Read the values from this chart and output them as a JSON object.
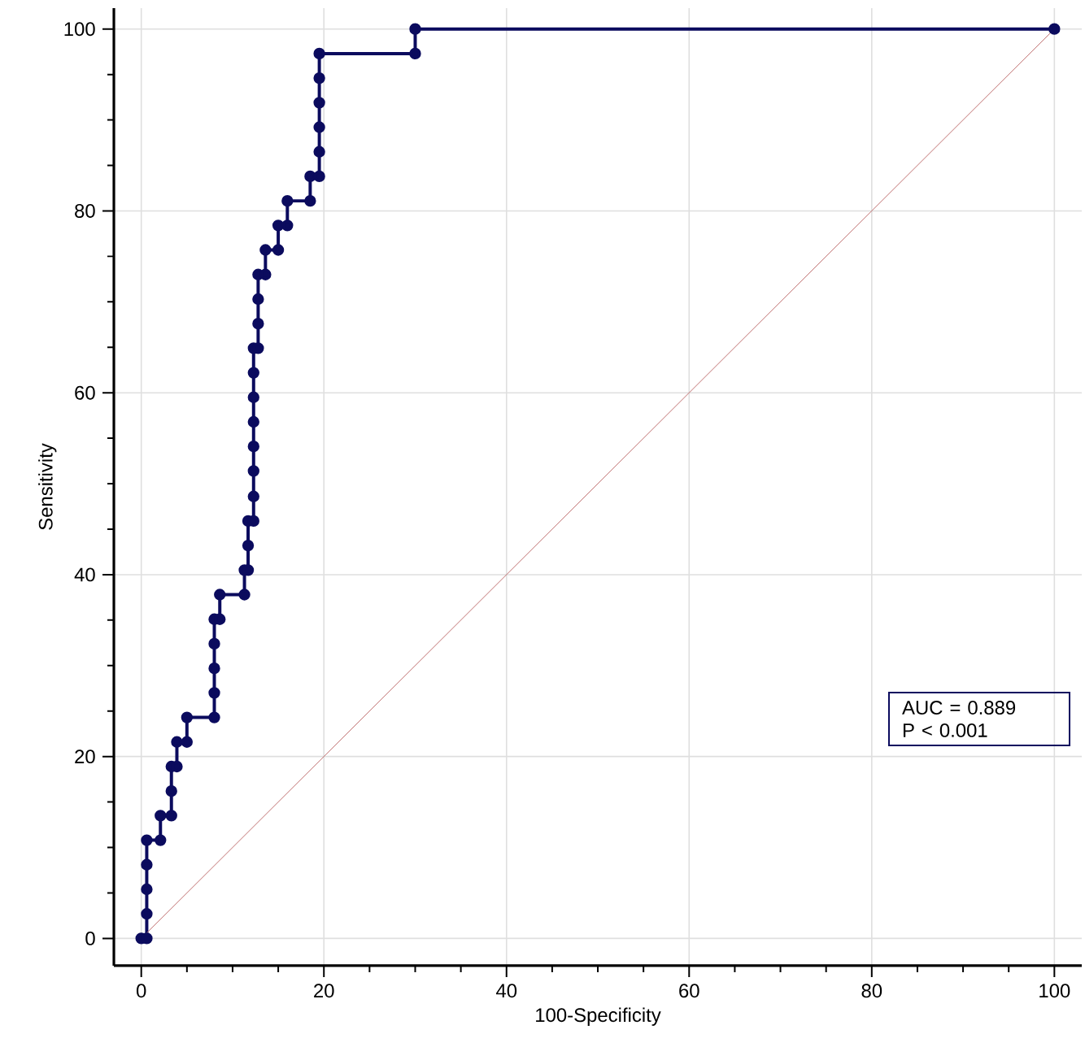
{
  "chart_data": {
    "type": "line",
    "xlabel": "100-Specificity",
    "ylabel": "Sensitivity",
    "xlim": [
      -3,
      103
    ],
    "ylim": [
      -3,
      102.3
    ],
    "xticks": [
      0,
      20,
      40,
      60,
      80,
      100
    ],
    "yticks": [
      0,
      20,
      40,
      60,
      80,
      100
    ],
    "grid": true,
    "series": [
      {
        "color": "#0b0b5e",
        "marker": "circle",
        "x": [
          0,
          0.6,
          0.6,
          0.6,
          0.6,
          0.6,
          2.1,
          2.1,
          3.3,
          3.3,
          3.3,
          3.9,
          3.9,
          5.0,
          5.0,
          8.0,
          8.0,
          8.0,
          8.0,
          8.0,
          8.6,
          8.6,
          11.3,
          11.3,
          11.7,
          11.7,
          11.7,
          12.3,
          12.3,
          12.3,
          12.3,
          12.3,
          12.3,
          12.3,
          12.3,
          12.8,
          12.8,
          12.8,
          12.8,
          13.6,
          13.6,
          15.0,
          15.0,
          16.0,
          16.0,
          18.5,
          18.5,
          19.5,
          19.5,
          19.5,
          19.5,
          19.5,
          19.5,
          30.0,
          30.0,
          100
        ],
        "values": [
          0,
          0,
          2.7,
          5.4,
          8.1,
          10.8,
          10.8,
          13.5,
          13.5,
          16.2,
          18.9,
          18.9,
          21.6,
          21.6,
          24.3,
          24.3,
          27.0,
          29.7,
          32.4,
          35.1,
          35.1,
          37.8,
          37.8,
          40.5,
          40.5,
          43.2,
          45.9,
          45.9,
          48.6,
          51.4,
          54.1,
          56.8,
          59.5,
          62.2,
          64.9,
          64.9,
          67.6,
          70.3,
          73.0,
          73.0,
          75.7,
          75.7,
          78.4,
          78.4,
          81.1,
          81.1,
          83.8,
          83.8,
          86.5,
          89.2,
          91.9,
          94.6,
          97.3,
          97.3,
          100,
          100
        ]
      },
      {
        "color": "#c07070",
        "marker": "none",
        "x": [
          0,
          100
        ],
        "values": [
          0,
          100
        ]
      }
    ],
    "annotations": [
      "AUC = 0.889",
      "P < 0.001"
    ]
  }
}
